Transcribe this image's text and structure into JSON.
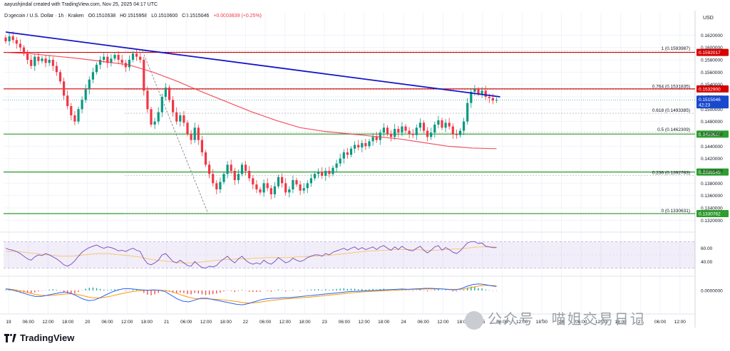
{
  "header": {
    "credit": "aayushjindal created with TradingView.com, Nov 25, 2025 04:17 UTC"
  },
  "symbol_bar": {
    "name": "Dogecoin / U.S. Dollar · 1h · Kraken",
    "open": "O0.1510638",
    "high": "H0.1515958",
    "low": "L0.1510600",
    "close": "C0.1515046",
    "change": "+0.0003839 (+0.25%)"
  },
  "branding": {
    "logo_text": "TradingView",
    "watermark": "公众号 · 喵姐交易日记"
  },
  "chart_data": {
    "type": "candlestick",
    "currency": "USD",
    "price_axis": {
      "range": [
        0.131,
        0.164
      ],
      "ticks": [
        "0.1620000",
        "0.1600000",
        "0.1580000",
        "0.1560000",
        "0.1540000",
        "0.1520000",
        "0.1500000",
        "0.1480000",
        "0.1460000",
        "0.1440000",
        "0.1420000",
        "0.1400000",
        "0.1380000",
        "0.1360000",
        "0.1340000",
        "0.1320000"
      ]
    },
    "time_axis": {
      "labels": [
        "19",
        "06:00",
        "12:00",
        "18:00",
        "20",
        "06:00",
        "12:00",
        "18:00",
        "21",
        "06:00",
        "12:00",
        "18:00",
        "22",
        "06:00",
        "12:00",
        "18:00",
        "23",
        "06:00",
        "12:00",
        "18:00",
        "24",
        "06:00",
        "12:00",
        "18:00",
        "25",
        "06:00",
        "12:00",
        "18:00",
        "26",
        "06:00",
        "12:00",
        "18:00",
        "27",
        "06:00",
        "12:00"
      ]
    },
    "current_price": {
      "value": 0.1515046,
      "label": "0.1515046",
      "countdown": "42:23"
    },
    "horizontal_levels": [
      {
        "value": 0.1592017,
        "label": "0.1592017",
        "color": "#d50000"
      },
      {
        "value": 0.15329,
        "label": "0.1532900",
        "color": "#d50000"
      },
      {
        "value": 0.1459627,
        "label": "0.1459627",
        "color": "#2e9c2e"
      },
      {
        "value": 0.1398149,
        "label": "0.1398149",
        "color": "#2e9c2e"
      },
      {
        "value": 0.1330762,
        "label": "0.1330762",
        "color": "#2e9c2e"
      }
    ],
    "fibonacci": [
      {
        "ratio": "1",
        "value": 0.1593987,
        "label": "1 (0.1593987)"
      },
      {
        "ratio": "0.764",
        "value": 0.1531835,
        "label": "0.764 (0.1531835)"
      },
      {
        "ratio": "0.618",
        "value": 0.1493385,
        "label": "0.618 (0.1493385)"
      },
      {
        "ratio": "0.5",
        "value": 0.1462309,
        "label": "0.5 (0.1462309)"
      },
      {
        "ratio": "0.236",
        "value": 0.1392783,
        "label": "0.236 (0.1392783)"
      },
      {
        "ratio": "0",
        "value": 0.1330631,
        "label": "0 (0.1330631)"
      }
    ],
    "trendline": {
      "from": {
        "t": 0,
        "price": 0.1625
      },
      "to": {
        "t": 136,
        "price": 0.152
      },
      "color": "#1515c9"
    },
    "closes": [
      0.161,
      0.1618,
      0.1612,
      0.1606,
      0.16,
      0.159,
      0.158,
      0.157,
      0.1585,
      0.1578,
      0.1582,
      0.1575,
      0.158,
      0.157,
      0.156,
      0.1545,
      0.1522,
      0.1505,
      0.149,
      0.148,
      0.15,
      0.1515,
      0.1532,
      0.1548,
      0.156,
      0.1572,
      0.158,
      0.1585,
      0.1575,
      0.1582,
      0.1588,
      0.158,
      0.1575,
      0.1568,
      0.158,
      0.159,
      0.1585,
      0.158,
      0.153,
      0.15,
      0.1475,
      0.148,
      0.1495,
      0.152,
      0.1535,
      0.1515,
      0.1495,
      0.148,
      0.149,
      0.1478,
      0.146,
      0.145,
      0.147,
      0.145,
      0.143,
      0.141,
      0.1395,
      0.138,
      0.137,
      0.1382,
      0.1395,
      0.141,
      0.14,
      0.1385,
      0.1395,
      0.141,
      0.14,
      0.1388,
      0.1378,
      0.137,
      0.1365,
      0.138,
      0.1372,
      0.1362,
      0.1375,
      0.139,
      0.138,
      0.1365,
      0.137,
      0.1385,
      0.1378,
      0.1368,
      0.1372,
      0.138,
      0.1388,
      0.1395,
      0.1398,
      0.1392,
      0.14,
      0.1395,
      0.1405,
      0.1412,
      0.142,
      0.143,
      0.1426,
      0.1436,
      0.1442,
      0.1438,
      0.1445,
      0.144,
      0.1448,
      0.1455,
      0.145,
      0.1462,
      0.147,
      0.146,
      0.1455,
      0.1468,
      0.1462,
      0.1472,
      0.1465,
      0.146,
      0.1458,
      0.147,
      0.1478,
      0.1465,
      0.1455,
      0.1462,
      0.1475,
      0.1482,
      0.147,
      0.1478,
      0.1472,
      0.146,
      0.1458,
      0.1465,
      0.148,
      0.151,
      0.1528,
      0.1532,
      0.1525,
      0.153,
      0.152,
      0.1518,
      0.1514,
      0.1515
    ],
    "ma_line": [
      0.1592,
      0.159,
      0.1586,
      0.1582,
      0.1577,
      0.1572,
      0.156,
      0.1545,
      0.1528,
      0.1512,
      0.1496,
      0.1482,
      0.147,
      0.1464,
      0.146,
      0.1456,
      0.1452,
      0.1446,
      0.144,
      0.1437,
      0.1436
    ],
    "rsi": {
      "levels": [
        "60.00",
        "40.00"
      ],
      "range": [
        20,
        80
      ],
      "values": [
        60,
        58,
        57,
        55,
        52,
        48,
        44,
        42,
        47,
        50,
        49,
        52,
        50,
        47,
        44,
        40,
        35,
        33,
        36,
        41,
        48,
        54,
        58,
        61,
        63,
        65,
        62,
        60,
        62,
        61,
        59,
        56,
        57,
        55,
        58,
        60,
        57,
        55,
        44,
        37,
        35,
        38,
        42,
        50,
        52,
        46,
        40,
        38,
        42,
        38,
        34,
        33,
        40,
        35,
        31,
        30,
        33,
        32,
        34,
        40,
        44,
        48,
        42,
        38,
        44,
        48,
        42,
        38,
        36,
        38,
        36,
        42,
        38,
        36,
        40,
        46,
        42,
        38,
        40,
        45,
        42,
        40,
        42,
        46,
        48,
        50,
        50,
        48,
        52,
        50,
        54,
        56,
        58,
        60,
        57,
        60,
        62,
        58,
        61,
        58,
        60,
        62,
        58,
        62,
        64,
        60,
        57,
        62,
        58,
        63,
        59,
        57,
        56,
        60,
        63,
        57,
        53,
        57,
        62,
        64,
        57,
        61,
        58,
        54,
        52,
        56,
        62,
        68,
        70,
        70,
        67,
        68,
        63,
        62,
        61,
        61
      ],
      "ma": [
        55,
        55,
        55,
        54,
        53,
        52,
        51,
        50,
        49,
        48,
        48,
        48,
        49,
        50,
        51,
        52,
        52,
        52,
        51,
        50,
        49,
        48,
        47,
        45,
        43,
        42,
        41,
        40,
        39,
        38,
        38,
        38,
        39,
        40,
        41,
        42,
        43,
        43,
        44,
        44,
        44,
        45,
        45,
        46,
        46,
        46,
        46,
        46,
        47,
        47,
        48,
        48,
        49,
        49,
        50,
        51,
        52,
        53,
        54,
        55,
        56,
        56,
        57,
        57,
        58,
        58,
        58,
        58,
        58,
        57,
        57,
        57,
        58,
        58,
        59,
        59,
        60,
        61,
        62,
        62,
        62,
        62
      ]
    },
    "macd": {
      "zero_label": "0.0000000",
      "histogram": [
        0.2,
        0.3,
        0.1,
        -0.2,
        -0.4,
        -0.6,
        -0.8,
        -0.9,
        -0.6,
        -0.3,
        -0.1,
        0.1,
        0.3,
        0.4,
        0.2,
        -0.1,
        -0.5,
        -0.9,
        -1.2,
        -1.0,
        -0.5,
        0.1,
        0.6,
        0.9,
        1.0,
        0.8,
        0.5,
        0.3,
        0.2,
        0.3,
        0.4,
        0.2,
        0.0,
        -0.2,
        0.1,
        0.3,
        0.2,
        0.0,
        -0.8,
        -1.4,
        -1.6,
        -1.3,
        -0.8,
        -0.2,
        0.2,
        -0.3,
        -0.8,
        -1.0,
        -0.7,
        -0.9,
        -1.2,
        -1.3,
        -0.8,
        -1.0,
        -1.3,
        -1.5,
        -1.4,
        -1.2,
        -1.0,
        -0.7,
        -0.3,
        0.1,
        -0.2,
        -0.5,
        -0.2,
        0.2,
        -0.1,
        -0.4,
        -0.5,
        -0.5,
        -0.4,
        0.0,
        -0.2,
        -0.4,
        -0.1,
        0.3,
        0.1,
        -0.3,
        -0.1,
        0.2,
        0.0,
        -0.2,
        0.0,
        0.2,
        0.3,
        0.4,
        0.4,
        0.2,
        0.4,
        0.2,
        0.4,
        0.5,
        0.6,
        0.7,
        0.5,
        0.6,
        0.6,
        0.4,
        0.5,
        0.3,
        0.4,
        0.5,
        0.3,
        0.5,
        0.6,
        0.3,
        0.1,
        0.3,
        0.2,
        0.3,
        0.1,
        -0.1,
        -0.2,
        0.1,
        0.3,
        -0.1,
        -0.3,
        -0.1,
        0.3,
        0.4,
        0.1,
        0.2,
        0.0,
        -0.3,
        -0.3,
        -0.1,
        0.3,
        1.0,
        1.3,
        1.2,
        0.8,
        0.7,
        0.3,
        0.1,
        -0.1,
        -0.1
      ],
      "macd_line": [
        0.5,
        0.2,
        -0.3,
        -0.9,
        -1.5,
        -2.0,
        -2.0,
        -1.6,
        -1.2,
        -0.8,
        -0.5,
        -0.9,
        -1.8,
        -2.8,
        -3.4,
        -3.2,
        -2.4,
        -1.4,
        -0.5,
        0.2,
        0.6,
        0.6,
        0.4,
        0.2,
        0.1,
        0.2,
        0.1,
        -0.4,
        -1.6,
        -2.8,
        -3.6,
        -3.8,
        -3.2,
        -2.6,
        -2.6,
        -3.0,
        -3.4,
        -3.8,
        -4.2,
        -4.6,
        -4.8,
        -4.4,
        -3.8,
        -3.2,
        -2.8,
        -2.6,
        -2.6,
        -2.4,
        -2.4,
        -2.2,
        -2.0,
        -1.8,
        -1.6,
        -1.4,
        -1.2,
        -1.0,
        -0.8,
        -0.6,
        -0.4,
        -0.3,
        -0.2,
        -0.1,
        0.0,
        0.1,
        0.2,
        0.3,
        0.4,
        0.5,
        0.4,
        0.5,
        0.6,
        0.7,
        0.7,
        0.6,
        0.5,
        0.3,
        0.2,
        0.6,
        1.4,
        2.0,
        2.2,
        2.0,
        1.6,
        1.3
      ],
      "signal_line": [
        0.6,
        0.4,
        0.1,
        -0.3,
        -0.8,
        -1.3,
        -1.6,
        -1.7,
        -1.6,
        -1.4,
        -1.2,
        -1.1,
        -1.3,
        -1.7,
        -2.2,
        -2.5,
        -2.5,
        -2.2,
        -1.8,
        -1.3,
        -0.9,
        -0.5,
        -0.2,
        0.0,
        0.1,
        0.1,
        0.1,
        0.0,
        -0.4,
        -1.0,
        -1.7,
        -2.3,
        -2.7,
        -2.8,
        -2.8,
        -2.9,
        -3.0,
        -3.2,
        -3.4,
        -3.7,
        -4.0,
        -4.2,
        -4.1,
        -3.9,
        -3.6,
        -3.3,
        -3.1,
        -2.9,
        -2.7,
        -2.6,
        -2.4,
        -2.3,
        -2.1,
        -1.9,
        -1.7,
        -1.5,
        -1.3,
        -1.1,
        -0.9,
        -0.7,
        -0.5,
        -0.4,
        -0.3,
        -0.2,
        -0.1,
        0.0,
        0.1,
        0.2,
        0.3,
        0.4,
        0.4,
        0.5,
        0.5,
        0.5,
        0.5,
        0.4,
        0.4,
        0.4,
        0.7,
        1.1,
        1.5,
        1.7,
        1.7,
        1.6
      ]
    }
  }
}
